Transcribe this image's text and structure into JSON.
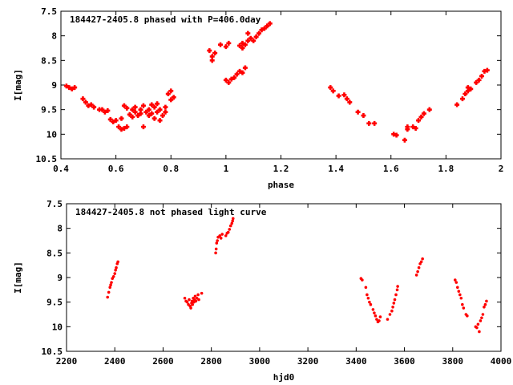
{
  "chart_data": [
    {
      "type": "scatter",
      "title": "184427-2405.8 phased with P=406.0day",
      "xlabel": "phase",
      "ylabel": "I[mag]",
      "xlim": [
        0.4,
        2.0
      ],
      "ylim": [
        10.5,
        7.5
      ],
      "y_inverted": true,
      "xticks": [
        0.4,
        0.6,
        0.8,
        1,
        1.2,
        1.4,
        1.6,
        1.8,
        2
      ],
      "xtick_labels": [
        "0.4",
        "0.6",
        "0.8",
        "1",
        "1.2",
        "1.4",
        "1.6",
        "1.8",
        "2"
      ],
      "yticks": [
        7.5,
        8,
        8.5,
        9,
        9.5,
        10,
        10.5
      ],
      "ytick_labels": [
        "7.5",
        "8",
        "8.5",
        "9",
        "9.5",
        "10",
        "10.5"
      ],
      "grid": false,
      "marker": "cross",
      "color": "#ff0000",
      "points": [
        [
          0.42,
          9.02
        ],
        [
          0.43,
          9.05
        ],
        [
          0.44,
          9.08
        ],
        [
          0.45,
          9.05
        ],
        [
          0.48,
          9.28
        ],
        [
          0.49,
          9.35
        ],
        [
          0.5,
          9.42
        ],
        [
          0.51,
          9.4
        ],
        [
          0.52,
          9.45
        ],
        [
          0.54,
          9.5
        ],
        [
          0.55,
          9.5
        ],
        [
          0.56,
          9.55
        ],
        [
          0.57,
          9.52
        ],
        [
          0.58,
          9.7
        ],
        [
          0.59,
          9.75
        ],
        [
          0.6,
          9.72
        ],
        [
          0.61,
          9.85
        ],
        [
          0.62,
          9.9
        ],
        [
          0.63,
          9.88
        ],
        [
          0.64,
          9.85
        ],
        [
          0.62,
          9.68
        ],
        [
          0.63,
          9.42
        ],
        [
          0.64,
          9.47
        ],
        [
          0.65,
          9.6
        ],
        [
          0.66,
          9.65
        ],
        [
          0.66,
          9.5
        ],
        [
          0.67,
          9.55
        ],
        [
          0.67,
          9.45
        ],
        [
          0.68,
          9.62
        ],
        [
          0.69,
          9.5
        ],
        [
          0.69,
          9.58
        ],
        [
          0.7,
          9.42
        ],
        [
          0.7,
          9.85
        ],
        [
          0.71,
          9.55
        ],
        [
          0.72,
          9.5
        ],
        [
          0.72,
          9.62
        ],
        [
          0.73,
          9.4
        ],
        [
          0.73,
          9.58
        ],
        [
          0.74,
          9.68
        ],
        [
          0.74,
          9.45
        ],
        [
          0.75,
          9.55
        ],
        [
          0.75,
          9.38
        ],
        [
          0.76,
          9.72
        ],
        [
          0.76,
          9.5
        ],
        [
          0.77,
          9.62
        ],
        [
          0.78,
          9.45
        ],
        [
          0.78,
          9.55
        ],
        [
          0.79,
          9.18
        ],
        [
          0.8,
          9.3
        ],
        [
          0.8,
          9.12
        ],
        [
          0.81,
          9.25
        ],
        [
          0.94,
          8.3
        ],
        [
          0.95,
          8.42
        ],
        [
          0.95,
          8.5
        ],
        [
          0.96,
          8.35
        ],
        [
          0.98,
          8.18
        ],
        [
          1.0,
          8.22
        ],
        [
          1.01,
          8.15
        ],
        [
          1.0,
          8.9
        ],
        [
          1.01,
          8.95
        ],
        [
          1.02,
          8.88
        ],
        [
          1.03,
          8.85
        ],
        [
          1.04,
          8.78
        ],
        [
          1.05,
          8.72
        ],
        [
          1.06,
          8.75
        ],
        [
          1.07,
          8.65
        ],
        [
          1.05,
          8.2
        ],
        [
          1.06,
          8.25
        ],
        [
          1.06,
          8.15
        ],
        [
          1.07,
          8.18
        ],
        [
          1.08,
          8.1
        ],
        [
          1.08,
          7.95
        ],
        [
          1.09,
          8.05
        ],
        [
          1.1,
          8.1
        ],
        [
          1.11,
          8.02
        ],
        [
          1.12,
          7.95
        ],
        [
          1.13,
          7.88
        ],
        [
          1.14,
          7.85
        ],
        [
          1.15,
          7.8
        ],
        [
          1.16,
          7.75
        ],
        [
          1.38,
          9.05
        ],
        [
          1.39,
          9.12
        ],
        [
          1.41,
          9.22
        ],
        [
          1.43,
          9.2
        ],
        [
          1.44,
          9.28
        ],
        [
          1.45,
          9.35
        ],
        [
          1.48,
          9.55
        ],
        [
          1.5,
          9.62
        ],
        [
          1.52,
          9.78
        ],
        [
          1.54,
          9.78
        ],
        [
          1.61,
          10.0
        ],
        [
          1.62,
          10.02
        ],
        [
          1.65,
          10.12
        ],
        [
          1.66,
          9.9
        ],
        [
          1.66,
          9.85
        ],
        [
          1.68,
          9.85
        ],
        [
          1.69,
          9.88
        ],
        [
          1.7,
          9.72
        ],
        [
          1.71,
          9.65
        ],
        [
          1.72,
          9.58
        ],
        [
          1.74,
          9.5
        ],
        [
          1.84,
          9.4
        ],
        [
          1.86,
          9.28
        ],
        [
          1.87,
          9.18
        ],
        [
          1.88,
          9.12
        ],
        [
          1.88,
          9.05
        ],
        [
          1.89,
          9.08
        ],
        [
          1.91,
          8.95
        ],
        [
          1.92,
          8.9
        ],
        [
          1.93,
          8.82
        ],
        [
          1.94,
          8.72
        ],
        [
          1.95,
          8.7
        ]
      ]
    },
    {
      "type": "scatter",
      "title": "184427-2405.8 not phased light curve",
      "xlabel": "hjd0",
      "ylabel": "I[mag]",
      "xlim": [
        2200,
        4000
      ],
      "ylim": [
        10.5,
        7.5
      ],
      "y_inverted": true,
      "xticks": [
        2200,
        2400,
        2600,
        2800,
        3000,
        3200,
        3400,
        3600,
        3800,
        4000
      ],
      "xtick_labels": [
        "2200",
        "2400",
        "2600",
        "2800",
        "3000",
        "3200",
        "3400",
        "3600",
        "3800",
        "4000"
      ],
      "yticks": [
        7.5,
        8,
        8.5,
        9,
        9.5,
        10,
        10.5
      ],
      "ytick_labels": [
        "7.5",
        "8",
        "8.5",
        "9",
        "9.5",
        "10",
        "10.5"
      ],
      "grid": false,
      "marker": "dot",
      "color": "#ff0000",
      "points": [
        [
          2370,
          9.4
        ],
        [
          2375,
          9.3
        ],
        [
          2380,
          9.2
        ],
        [
          2383,
          9.15
        ],
        [
          2386,
          9.1
        ],
        [
          2390,
          9.02
        ],
        [
          2395,
          8.98
        ],
        [
          2400,
          8.92
        ],
        [
          2403,
          8.85
        ],
        [
          2406,
          8.8
        ],
        [
          2410,
          8.72
        ],
        [
          2413,
          8.68
        ],
        [
          2690,
          9.42
        ],
        [
          2695,
          9.48
        ],
        [
          2700,
          9.5
        ],
        [
          2705,
          9.55
        ],
        [
          2708,
          9.45
        ],
        [
          2712,
          9.58
        ],
        [
          2715,
          9.62
        ],
        [
          2718,
          9.52
        ],
        [
          2720,
          9.48
        ],
        [
          2722,
          9.55
        ],
        [
          2725,
          9.42
        ],
        [
          2728,
          9.5
        ],
        [
          2730,
          9.45
        ],
        [
          2733,
          9.38
        ],
        [
          2736,
          9.48
        ],
        [
          2740,
          9.42
        ],
        [
          2745,
          9.35
        ],
        [
          2748,
          9.45
        ],
        [
          2760,
          9.32
        ],
        [
          2818,
          8.5
        ],
        [
          2820,
          8.42
        ],
        [
          2822,
          8.3
        ],
        [
          2825,
          8.25
        ],
        [
          2828,
          8.18
        ],
        [
          2835,
          8.15
        ],
        [
          2840,
          8.2
        ],
        [
          2845,
          8.12
        ],
        [
          2860,
          8.15
        ],
        [
          2865,
          8.1
        ],
        [
          2870,
          8.08
        ],
        [
          2875,
          8.02
        ],
        [
          2880,
          7.95
        ],
        [
          2885,
          7.9
        ],
        [
          2888,
          7.85
        ],
        [
          2890,
          7.8
        ],
        [
          3420,
          9.02
        ],
        [
          3425,
          9.05
        ],
        [
          3440,
          9.2
        ],
        [
          3445,
          9.35
        ],
        [
          3450,
          9.42
        ],
        [
          3455,
          9.5
        ],
        [
          3460,
          9.55
        ],
        [
          3470,
          9.65
        ],
        [
          3475,
          9.72
        ],
        [
          3480,
          9.78
        ],
        [
          3485,
          9.85
        ],
        [
          3490,
          9.9
        ],
        [
          3495,
          9.88
        ],
        [
          3500,
          9.8
        ],
        [
          3530,
          9.85
        ],
        [
          3540,
          9.75
        ],
        [
          3548,
          9.68
        ],
        [
          3552,
          9.6
        ],
        [
          3556,
          9.52
        ],
        [
          3560,
          9.45
        ],
        [
          3565,
          9.35
        ],
        [
          3570,
          9.25
        ],
        [
          3572,
          9.18
        ],
        [
          3650,
          8.95
        ],
        [
          3655,
          8.88
        ],
        [
          3660,
          8.8
        ],
        [
          3665,
          8.72
        ],
        [
          3670,
          8.68
        ],
        [
          3675,
          8.62
        ],
        [
          3810,
          9.05
        ],
        [
          3815,
          9.1
        ],
        [
          3820,
          9.2
        ],
        [
          3825,
          9.28
        ],
        [
          3830,
          9.35
        ],
        [
          3835,
          9.42
        ],
        [
          3840,
          9.55
        ],
        [
          3845,
          9.62
        ],
        [
          3855,
          9.75
        ],
        [
          3860,
          9.78
        ],
        [
          3895,
          10.0
        ],
        [
          3900,
          10.02
        ],
        [
          3905,
          9.95
        ],
        [
          3910,
          10.1
        ],
        [
          3915,
          9.88
        ],
        [
          3920,
          9.82
        ],
        [
          3925,
          9.75
        ],
        [
          3930,
          9.6
        ],
        [
          3935,
          9.55
        ],
        [
          3940,
          9.48
        ]
      ]
    }
  ]
}
